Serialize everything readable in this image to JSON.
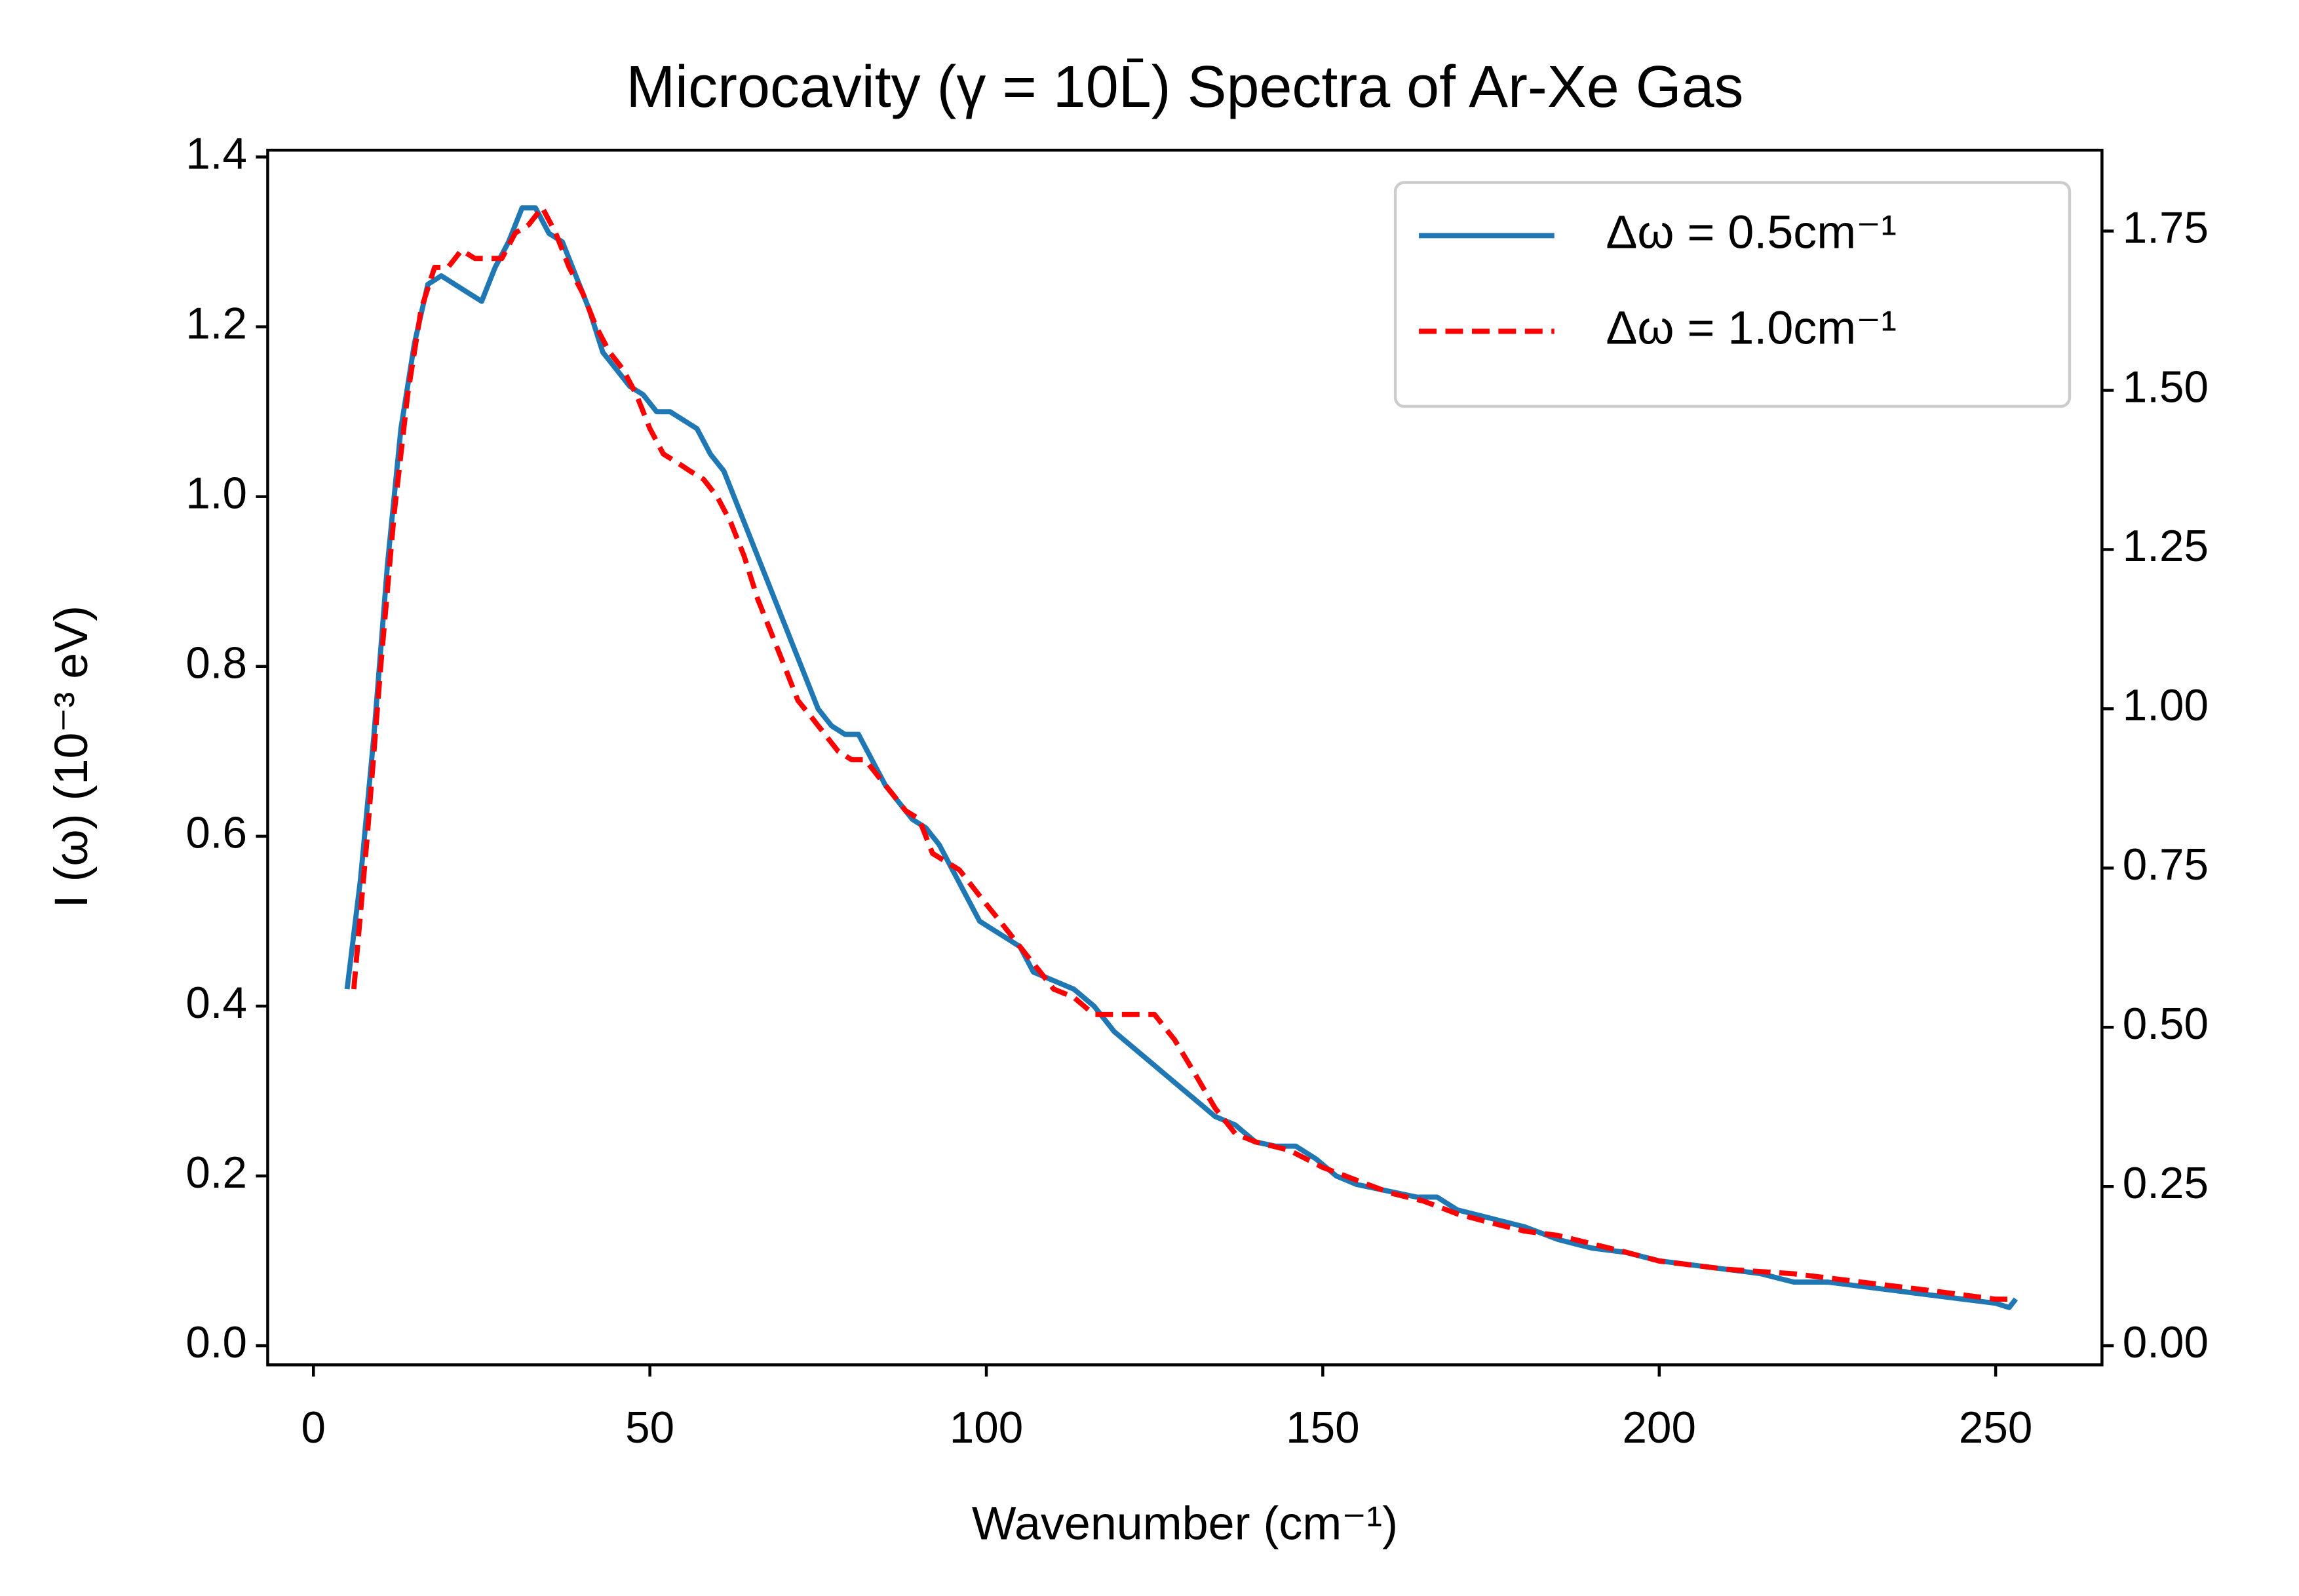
{
  "chart_data": {
    "type": "line",
    "title": "Microcavity (γ = 10L̄) Spectra of Ar-Xe Gas",
    "xlabel": "Wavenumber (cm⁻¹)",
    "ylabel": "I (ω) (10⁻³ eV)",
    "xlim": [
      -6.8,
      265.8
    ],
    "xticks": [
      0,
      50,
      100,
      150,
      200,
      250
    ],
    "ylim": [
      -0.0225,
      1.408
    ],
    "yticks": [
      {
        "value": 0,
        "label": "0.0"
      },
      0.2,
      0.4,
      0.6,
      0.8,
      {
        "value": 1,
        "label": "1.0"
      },
      1.2,
      1.4
    ],
    "y2lim": [
      -0.03,
      1.877
    ],
    "y2ticks": [
      {
        "value": 0,
        "label": "0.00"
      },
      0.25,
      {
        "value": 0.5,
        "label": "0.50"
      },
      0.75,
      {
        "value": 1,
        "label": "1.00"
      },
      1.25,
      {
        "value": 1.5,
        "label": "1.50"
      },
      1.75
    ],
    "legend": "upper right",
    "series": [
      {
        "name": "Δω = 0.5cm⁻¹",
        "color": "#1f77b4",
        "dash": false,
        "x": [
          5,
          7,
          9,
          11,
          13,
          15,
          17,
          19,
          21,
          23,
          25,
          27,
          29,
          31,
          33,
          35,
          37,
          39,
          41,
          43,
          45,
          47,
          49,
          51,
          53,
          55,
          57,
          59,
          61,
          63,
          65,
          67,
          69,
          71,
          73,
          75,
          77,
          79,
          81,
          83,
          85,
          87,
          89,
          91,
          93,
          95,
          97,
          99,
          101,
          103,
          105,
          107,
          110,
          113,
          116,
          119,
          122,
          125,
          128,
          131,
          134,
          137,
          140,
          143,
          146,
          149,
          152,
          155,
          158,
          161,
          164,
          167,
          170,
          175,
          180,
          185,
          190,
          195,
          200,
          205,
          210,
          215,
          220,
          225,
          230,
          235,
          240,
          245,
          250,
          252,
          253
        ],
        "values": [
          0.42,
          0.55,
          0.72,
          0.92,
          1.08,
          1.18,
          1.25,
          1.26,
          1.25,
          1.24,
          1.23,
          1.27,
          1.3,
          1.34,
          1.34,
          1.31,
          1.3,
          1.26,
          1.22,
          1.17,
          1.15,
          1.13,
          1.12,
          1.1,
          1.1,
          1.09,
          1.08,
          1.05,
          1.03,
          0.99,
          0.95,
          0.91,
          0.87,
          0.83,
          0.79,
          0.75,
          0.73,
          0.72,
          0.72,
          0.69,
          0.66,
          0.64,
          0.62,
          0.61,
          0.59,
          0.56,
          0.53,
          0.5,
          0.49,
          0.48,
          0.47,
          0.44,
          0.43,
          0.42,
          0.4,
          0.37,
          0.35,
          0.33,
          0.31,
          0.29,
          0.27,
          0.26,
          0.24,
          0.235,
          0.235,
          0.22,
          0.2,
          0.19,
          0.185,
          0.18,
          0.175,
          0.175,
          0.16,
          0.15,
          0.14,
          0.125,
          0.115,
          0.11,
          0.1,
          0.095,
          0.09,
          0.085,
          0.075,
          0.075,
          0.07,
          0.065,
          0.06,
          0.055,
          0.05,
          0.045,
          0.055
        ]
      },
      {
        "name": "Δω = 1.0cm⁻¹",
        "color": "#ff0000",
        "dash": true,
        "axis": "y2",
        "x": [
          6,
          8,
          10,
          12,
          14,
          16,
          18,
          20,
          22,
          24,
          26,
          28,
          30,
          32,
          34,
          36,
          38,
          40,
          42,
          44,
          46,
          48,
          50,
          52,
          54,
          56,
          58,
          60,
          62,
          64,
          66,
          68,
          70,
          72,
          74,
          76,
          78,
          80,
          82,
          84,
          86,
          88,
          90,
          92,
          94,
          96,
          98,
          100,
          102,
          104,
          106,
          108,
          110,
          113,
          116,
          119,
          122,
          125,
          128,
          131,
          134,
          137,
          140,
          145,
          150,
          155,
          160,
          165,
          170,
          175,
          180,
          185,
          190,
          195,
          200,
          210,
          220,
          230,
          240,
          250,
          252
        ],
        "values": [
          0.56,
          0.8,
          1.067,
          1.307,
          1.493,
          1.627,
          1.693,
          1.693,
          1.72,
          1.707,
          1.707,
          1.707,
          1.747,
          1.76,
          1.787,
          1.747,
          1.693,
          1.653,
          1.6,
          1.56,
          1.533,
          1.493,
          1.44,
          1.4,
          1.387,
          1.373,
          1.36,
          1.333,
          1.293,
          1.24,
          1.173,
          1.12,
          1.067,
          1.013,
          0.987,
          0.96,
          0.933,
          0.92,
          0.92,
          0.893,
          0.867,
          0.84,
          0.827,
          0.773,
          0.76,
          0.747,
          0.72,
          0.693,
          0.667,
          0.64,
          0.613,
          0.587,
          0.56,
          0.547,
          0.52,
          0.52,
          0.52,
          0.52,
          0.48,
          0.427,
          0.373,
          0.333,
          0.32,
          0.307,
          0.28,
          0.26,
          0.24,
          0.227,
          0.207,
          0.193,
          0.18,
          0.173,
          0.16,
          0.147,
          0.133,
          0.12,
          0.113,
          0.1,
          0.087,
          0.073,
          0.073
        ]
      }
    ]
  }
}
